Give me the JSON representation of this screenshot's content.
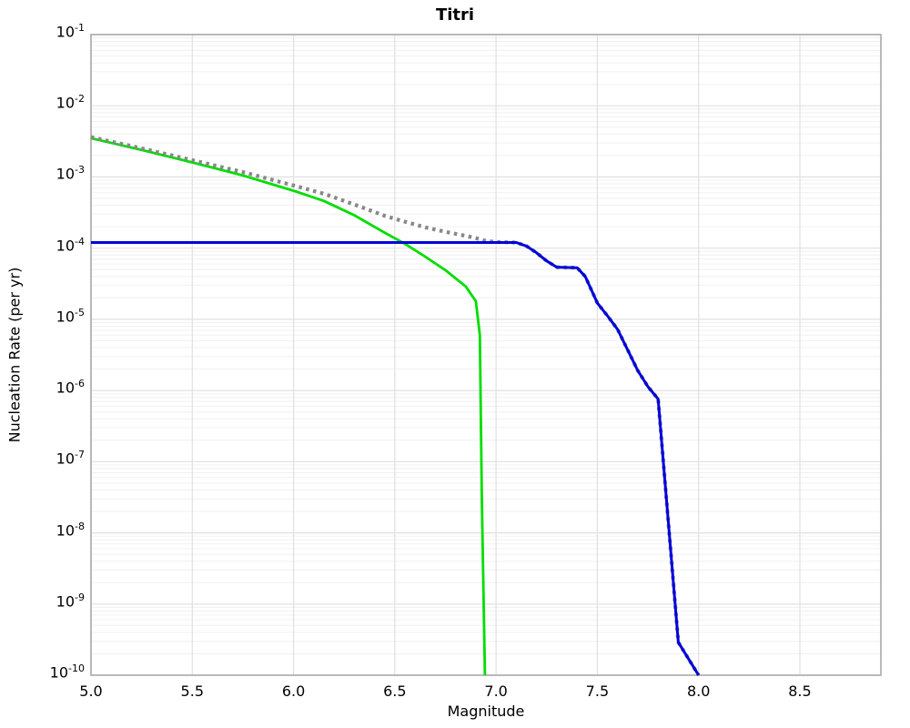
{
  "title": "Titri",
  "colors": {
    "green_line": "#00dd00",
    "blue_line": "#0000dd",
    "gray_dotted": "#888888",
    "grid_major": "#e0e0e0",
    "grid_minor": "#f0f0f0",
    "axis_spine": "#a8a8a8",
    "background": "#ffffff",
    "text": "#000000"
  },
  "chart_data": {
    "type": "line",
    "title": "Titri",
    "xlabel": "Magnitude",
    "ylabel": "Nucleation Rate (per yr)",
    "xlim": [
      5.0,
      8.9
    ],
    "ylim": [
      1e-10,
      0.1
    ],
    "yscale": "log",
    "grid": true,
    "legend": null,
    "x_tick_values": [
      5.0,
      5.5,
      6.0,
      6.5,
      7.0,
      7.5,
      8.0,
      8.5
    ],
    "x_tick_labels": [
      "5.0",
      "5.5",
      "6.0",
      "6.5",
      "7.0",
      "7.5",
      "8.0",
      "8.5"
    ],
    "y_tick_exponents": [
      -1,
      -2,
      -3,
      -4,
      -5,
      -6,
      -7,
      -8,
      -9,
      -10
    ],
    "series": [
      {
        "name": "green-solid",
        "color": "#00dd00",
        "style": "solid",
        "width": 2.8,
        "points": [
          [
            5.0,
            0.0035
          ],
          [
            5.25,
            0.0024
          ],
          [
            5.5,
            0.0016
          ],
          [
            5.75,
            0.00105
          ],
          [
            6.0,
            0.00064
          ],
          [
            6.15,
            0.00046
          ],
          [
            6.3,
            0.00029
          ],
          [
            6.45,
            0.000165
          ],
          [
            6.55,
            0.000115
          ],
          [
            6.65,
            7.6e-05
          ],
          [
            6.75,
            4.9e-05
          ],
          [
            6.85,
            2.9e-05
          ],
          [
            6.9,
            1.8e-05
          ],
          [
            6.92,
            6e-06
          ],
          [
            6.93,
            3e-08
          ],
          [
            6.945,
            1e-10
          ]
        ]
      },
      {
        "name": "gray-dotted",
        "color": "#888888",
        "style": "dotted",
        "width": 4.2,
        "dash": "3.5 4.6",
        "points": [
          [
            5.0,
            0.00362
          ],
          [
            5.25,
            0.00252
          ],
          [
            5.5,
            0.00172
          ],
          [
            5.75,
            0.00117
          ],
          [
            6.0,
            0.00076
          ],
          [
            6.15,
            0.00058
          ],
          [
            6.3,
            0.00041
          ],
          [
            6.45,
            0.000285
          ],
          [
            6.55,
            0.000235
          ],
          [
            6.65,
            0.000196
          ],
          [
            6.75,
            0.000169
          ],
          [
            6.85,
            0.000149
          ],
          [
            6.9,
            0.000138
          ],
          [
            6.95,
            0.000126
          ],
          [
            7.0,
            0.000122
          ],
          [
            7.1,
            0.00012
          ],
          [
            7.15,
            0.000107
          ],
          [
            7.2,
            8.6e-05
          ],
          [
            7.25,
            6.6e-05
          ],
          [
            7.3,
            5.4e-05
          ],
          [
            7.4,
            5.3e-05
          ],
          [
            7.44,
            4e-05
          ],
          [
            7.5,
            1.7e-05
          ],
          [
            7.55,
            1.12e-05
          ],
          [
            7.6,
            7.2e-06
          ],
          [
            7.7,
            1.9e-06
          ],
          [
            7.75,
            1.13e-06
          ],
          [
            7.8,
            7.6e-07
          ],
          [
            7.9,
            2.9e-10
          ],
          [
            8.0,
            1e-10
          ]
        ]
      },
      {
        "name": "blue-solid",
        "color": "#0000dd",
        "style": "solid",
        "width": 3,
        "points": [
          [
            5.0,
            0.00012
          ],
          [
            7.1,
            0.00012
          ],
          [
            7.15,
            0.000107
          ],
          [
            7.2,
            8.6e-05
          ],
          [
            7.25,
            6.6e-05
          ],
          [
            7.3,
            5.4e-05
          ],
          [
            7.4,
            5.3e-05
          ],
          [
            7.44,
            4e-05
          ],
          [
            7.5,
            1.7e-05
          ],
          [
            7.55,
            1.12e-05
          ],
          [
            7.6,
            7.2e-06
          ],
          [
            7.7,
            1.9e-06
          ],
          [
            7.75,
            1.13e-06
          ],
          [
            7.8,
            7.6e-07
          ],
          [
            7.9,
            2.9e-10
          ],
          [
            8.0,
            1e-10
          ]
        ]
      }
    ]
  }
}
